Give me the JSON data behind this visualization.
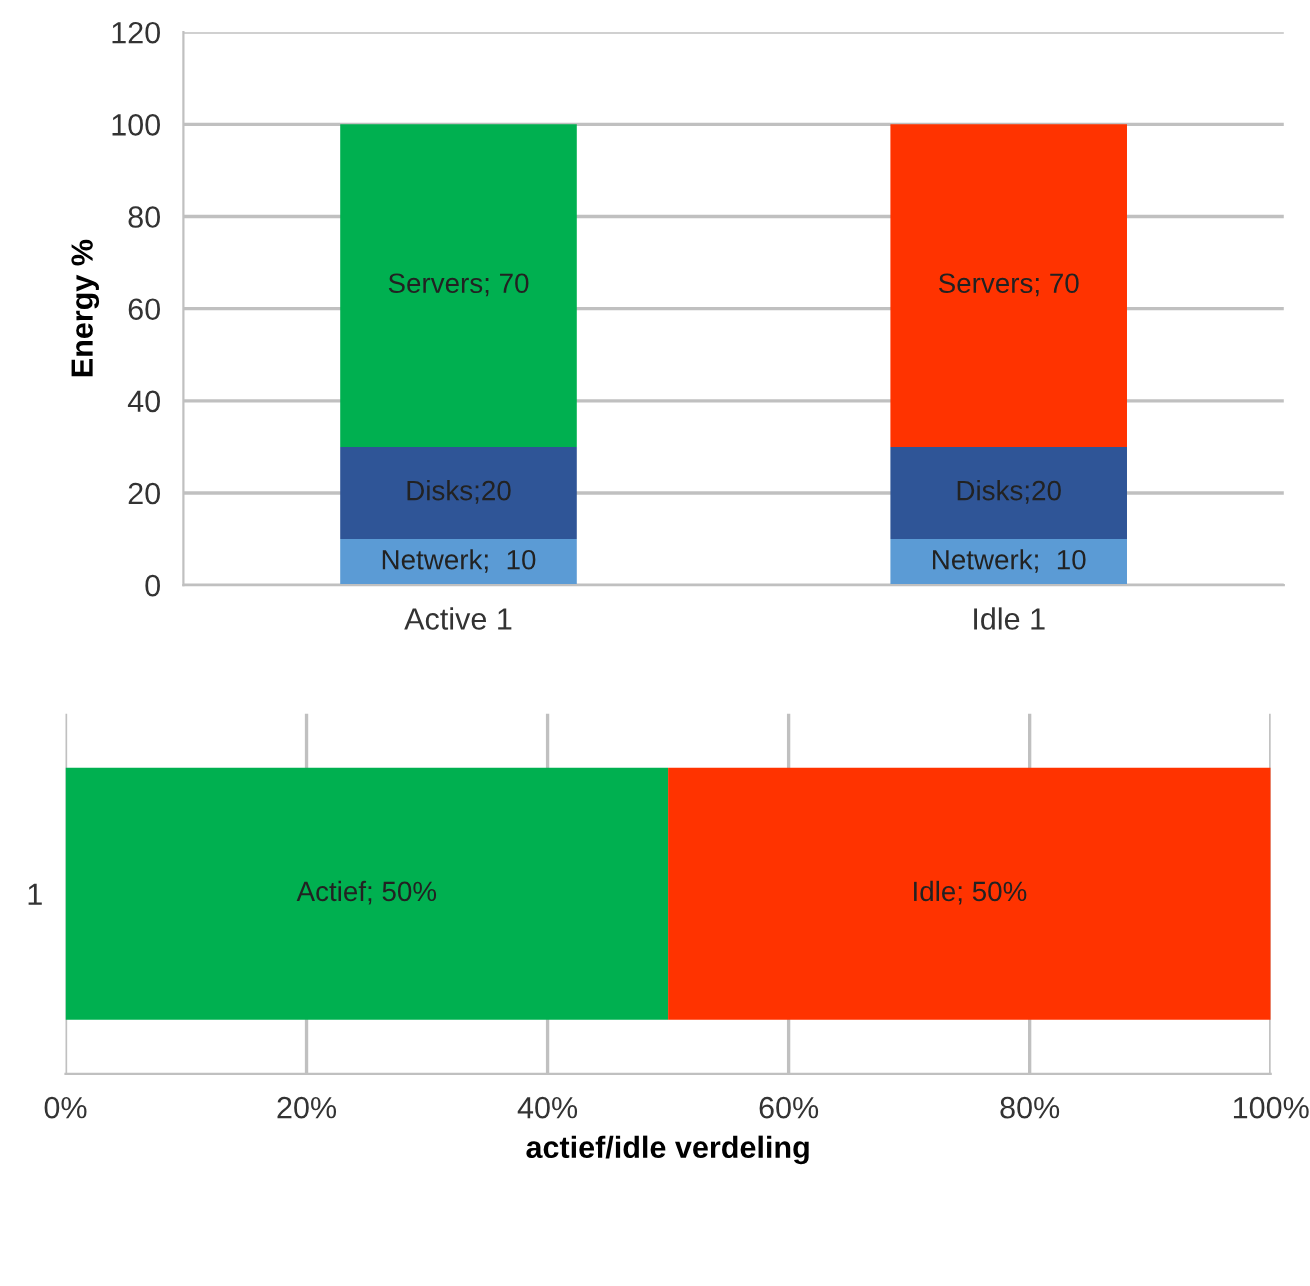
{
  "chart_data": [
    {
      "type": "bar",
      "stacked": true,
      "ylabel": "Energy %",
      "categories": [
        "Active 1",
        "Idle 1"
      ],
      "ylim": [
        0,
        120
      ],
      "yticks": [
        0,
        20,
        40,
        60,
        80,
        100,
        120
      ],
      "grid": "y",
      "legend": false,
      "series": [
        {
          "color": "#5b9bd5",
          "values": [
            10,
            10
          ],
          "value_labels": [
            "Netwerk;  10",
            "Netwerk;  10"
          ]
        },
        {
          "color": "#2f5597",
          "values": [
            20,
            20
          ],
          "value_labels": [
            "Disks;20",
            "Disks;20"
          ]
        },
        {
          "colors": [
            "#00b050",
            "#ff3300"
          ],
          "values": [
            70,
            70
          ],
          "value_labels": [
            "Servers; 70",
            "Servers; 70"
          ]
        }
      ]
    },
    {
      "type": "bar",
      "stacked": true,
      "orientation": "horizontal",
      "xlabel": "actief/idle verdeling",
      "categories": [
        "1"
      ],
      "xlim": [
        0,
        100
      ],
      "xticks": [
        {
          "value": 0,
          "label": "0%"
        },
        {
          "value": 20,
          "label": "20%"
        },
        {
          "value": 40,
          "label": "40%"
        },
        {
          "value": 60,
          "label": "60%"
        },
        {
          "value": 80,
          "label": "80%"
        },
        {
          "value": 100,
          "label": "100%"
        }
      ],
      "grid": "x",
      "legend": false,
      "series": [
        {
          "color": "#00b050",
          "values": [
            50
          ],
          "value_labels": [
            "Actief; 50%"
          ]
        },
        {
          "color": "#ff3300",
          "values": [
            50
          ],
          "value_labels": [
            "Idle; 50%"
          ]
        }
      ]
    }
  ]
}
